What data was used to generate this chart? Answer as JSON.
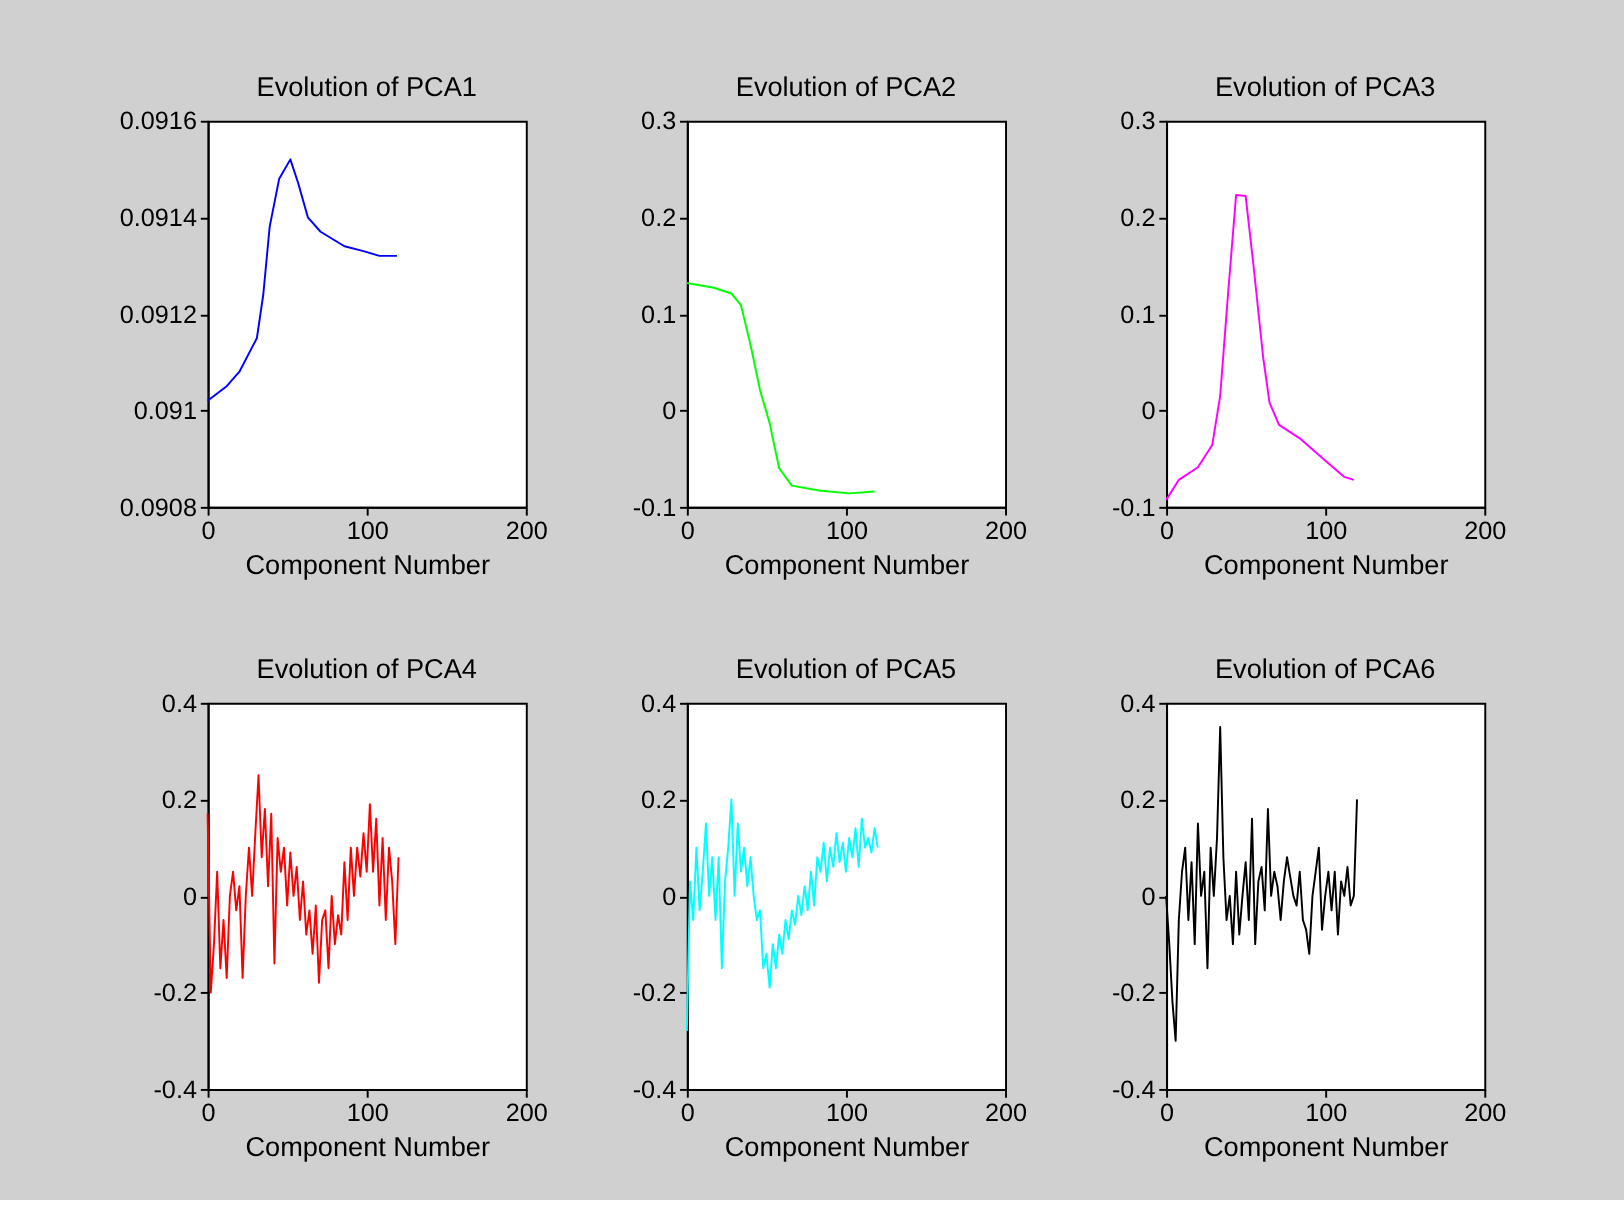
{
  "chart_data": [
    {
      "type": "line",
      "title": "Evolution of PCA1",
      "xlabel": "Component Number",
      "xlim": [
        0,
        200
      ],
      "xticks": [
        0,
        100,
        200
      ],
      "ylim": [
        0.0908,
        0.0916
      ],
      "yticks": [
        0.0908,
        0.091,
        0.0912,
        0.0914,
        0.0916
      ],
      "grid": false,
      "series": [
        {
          "color": "#0000ff",
          "x": [
            0,
            12,
            20,
            31,
            35,
            39,
            45,
            52,
            57,
            63,
            71,
            86,
            98,
            108,
            119
          ],
          "values": [
            0.09102,
            0.09105,
            0.09108,
            0.09115,
            0.09124,
            0.09138,
            0.09148,
            0.09152,
            0.09147,
            0.0914,
            0.09137,
            0.09134,
            0.09133,
            0.09132,
            0.09132
          ]
        }
      ]
    },
    {
      "type": "line",
      "title": "Evolution of PCA2",
      "xlabel": "Component Number",
      "xlim": [
        0,
        200
      ],
      "xticks": [
        0,
        100,
        200
      ],
      "ylim": [
        -0.1,
        0.3
      ],
      "yticks": [
        -0.1,
        0,
        0.1,
        0.2,
        0.3
      ],
      "grid": false,
      "series": [
        {
          "color": "#00ff00",
          "x": [
            0,
            17,
            28,
            34,
            40,
            46,
            52,
            58,
            66,
            83,
            102,
            118
          ],
          "values": [
            0.132,
            0.127,
            0.121,
            0.109,
            0.068,
            0.021,
            -0.013,
            -0.06,
            -0.078,
            -0.083,
            -0.086,
            -0.084
          ]
        }
      ]
    },
    {
      "type": "line",
      "title": "Evolution of PCA3",
      "xlabel": "Component Number",
      "xlim": [
        0,
        200
      ],
      "xticks": [
        0,
        100,
        200
      ],
      "ylim": [
        -0.1,
        0.3
      ],
      "yticks": [
        -0.1,
        0,
        0.1,
        0.2,
        0.3
      ],
      "grid": false,
      "series": [
        {
          "color": "#ff00ff",
          "x": [
            0,
            8,
            20,
            29,
            34,
            39,
            44,
            50,
            55,
            61,
            65,
            71,
            84,
            100,
            112,
            118
          ],
          "values": [
            -0.093,
            -0.072,
            -0.059,
            -0.036,
            0.015,
            0.122,
            0.223,
            0.222,
            0.149,
            0.055,
            0.008,
            -0.015,
            -0.029,
            -0.052,
            -0.069,
            -0.072
          ]
        }
      ]
    },
    {
      "type": "line",
      "title": "Evolution of PCA4",
      "xlabel": "Component Number",
      "xlim": [
        0,
        200
      ],
      "xticks": [
        0,
        100,
        200
      ],
      "ylim": [
        -0.4,
        0.4
      ],
      "yticks": [
        -0.4,
        -0.2,
        0,
        0.2,
        0.4
      ],
      "grid": false,
      "series": [
        {
          "color": "#ff0000",
          "x": [
            0,
            2,
            4,
            6,
            8,
            10,
            12,
            14,
            16,
            18,
            20,
            22,
            24,
            26,
            28,
            30,
            32,
            34,
            36,
            38,
            40,
            42,
            44,
            46,
            48,
            50,
            52,
            54,
            56,
            58,
            60,
            62,
            64,
            66,
            68,
            70,
            72,
            74,
            76,
            78,
            80,
            82,
            84,
            86,
            88,
            90,
            92,
            94,
            96,
            98,
            100,
            102,
            104,
            106,
            108,
            110,
            112,
            114,
            116,
            118,
            120
          ],
          "values": [
            0.17,
            -0.2,
            -0.1,
            0.05,
            -0.15,
            -0.05,
            -0.17,
            0.0,
            0.05,
            -0.03,
            0.02,
            -0.17,
            0.0,
            0.1,
            0.0,
            0.13,
            0.25,
            0.08,
            0.18,
            0.02,
            0.17,
            -0.14,
            0.12,
            0.05,
            0.1,
            -0.02,
            0.09,
            0.0,
            0.06,
            -0.05,
            0.03,
            -0.08,
            -0.03,
            -0.12,
            -0.02,
            -0.18,
            -0.05,
            -0.03,
            -0.15,
            0.0,
            -0.1,
            -0.04,
            -0.08,
            0.07,
            -0.05,
            0.1,
            0.0,
            0.1,
            0.04,
            0.13,
            0.05,
            0.19,
            0.05,
            0.16,
            -0.02,
            0.12,
            -0.05,
            0.1,
            0.03,
            -0.1,
            0.08
          ]
        }
      ]
    },
    {
      "type": "line",
      "title": "Evolution of PCA5",
      "xlabel": "Component Number",
      "xlim": [
        0,
        200
      ],
      "xticks": [
        0,
        100,
        200
      ],
      "ylim": [
        -0.4,
        0.4
      ],
      "yticks": [
        -0.4,
        -0.2,
        0,
        0.2,
        0.4
      ],
      "grid": false,
      "series": [
        {
          "color": "#00ffff",
          "x": [
            0,
            2,
            4,
            6,
            8,
            10,
            12,
            14,
            16,
            18,
            20,
            22,
            24,
            26,
            28,
            30,
            32,
            34,
            36,
            38,
            40,
            42,
            44,
            46,
            48,
            50,
            52,
            54,
            56,
            58,
            60,
            62,
            64,
            66,
            68,
            70,
            72,
            74,
            76,
            78,
            80,
            82,
            84,
            86,
            88,
            90,
            92,
            94,
            96,
            98,
            100,
            102,
            104,
            106,
            108,
            110,
            112,
            114,
            116,
            118,
            120
          ],
          "values": [
            -0.28,
            0.03,
            -0.05,
            0.1,
            -0.03,
            0.05,
            0.15,
            0.0,
            0.08,
            -0.05,
            0.08,
            -0.15,
            0.03,
            0.1,
            0.2,
            0.0,
            0.15,
            0.05,
            0.1,
            0.02,
            0.08,
            0.0,
            -0.05,
            -0.03,
            -0.15,
            -0.12,
            -0.19,
            -0.1,
            -0.15,
            -0.08,
            -0.12,
            -0.05,
            -0.09,
            -0.03,
            -0.06,
            0.0,
            -0.04,
            0.02,
            -0.03,
            0.05,
            -0.02,
            0.08,
            0.05,
            0.11,
            0.03,
            0.1,
            0.06,
            0.13,
            0.07,
            0.11,
            0.05,
            0.12,
            0.08,
            0.14,
            0.06,
            0.16,
            0.1,
            0.12,
            0.09,
            0.14,
            0.1
          ]
        }
      ]
    },
    {
      "type": "line",
      "title": "Evolution of PCA6",
      "xlabel": "Component Number",
      "xlim": [
        0,
        200
      ],
      "xticks": [
        0,
        100,
        200
      ],
      "ylim": [
        -0.4,
        0.4
      ],
      "yticks": [
        -0.4,
        -0.2,
        0,
        0.2,
        0.4
      ],
      "grid": false,
      "series": [
        {
          "color": "#000000",
          "x": [
            0,
            2,
            4,
            6,
            8,
            10,
            12,
            14,
            16,
            18,
            20,
            22,
            24,
            26,
            28,
            30,
            32,
            34,
            36,
            38,
            40,
            42,
            44,
            46,
            48,
            50,
            52,
            54,
            56,
            58,
            60,
            62,
            64,
            66,
            68,
            70,
            72,
            74,
            76,
            78,
            80,
            82,
            84,
            86,
            88,
            90,
            92,
            94,
            96,
            98,
            100,
            102,
            104,
            106,
            108,
            110,
            112,
            114,
            116,
            118,
            120
          ],
          "values": [
            0.0,
            -0.1,
            -0.22,
            -0.3,
            -0.05,
            0.05,
            0.1,
            -0.05,
            0.07,
            -0.1,
            0.15,
            0.0,
            0.05,
            -0.15,
            0.1,
            0.0,
            0.12,
            0.35,
            0.08,
            -0.05,
            0.0,
            -0.1,
            0.05,
            -0.08,
            0.0,
            0.07,
            -0.05,
            0.16,
            -0.1,
            0.03,
            0.06,
            -0.03,
            0.18,
            0.0,
            0.05,
            0.02,
            -0.05,
            0.03,
            0.08,
            0.04,
            0.0,
            -0.02,
            0.05,
            -0.05,
            -0.07,
            -0.12,
            0.0,
            0.05,
            0.1,
            -0.07,
            0.0,
            0.05,
            -0.03,
            0.05,
            -0.08,
            0.03,
            0.0,
            0.06,
            -0.02,
            0.0,
            0.2
          ]
        }
      ]
    }
  ]
}
